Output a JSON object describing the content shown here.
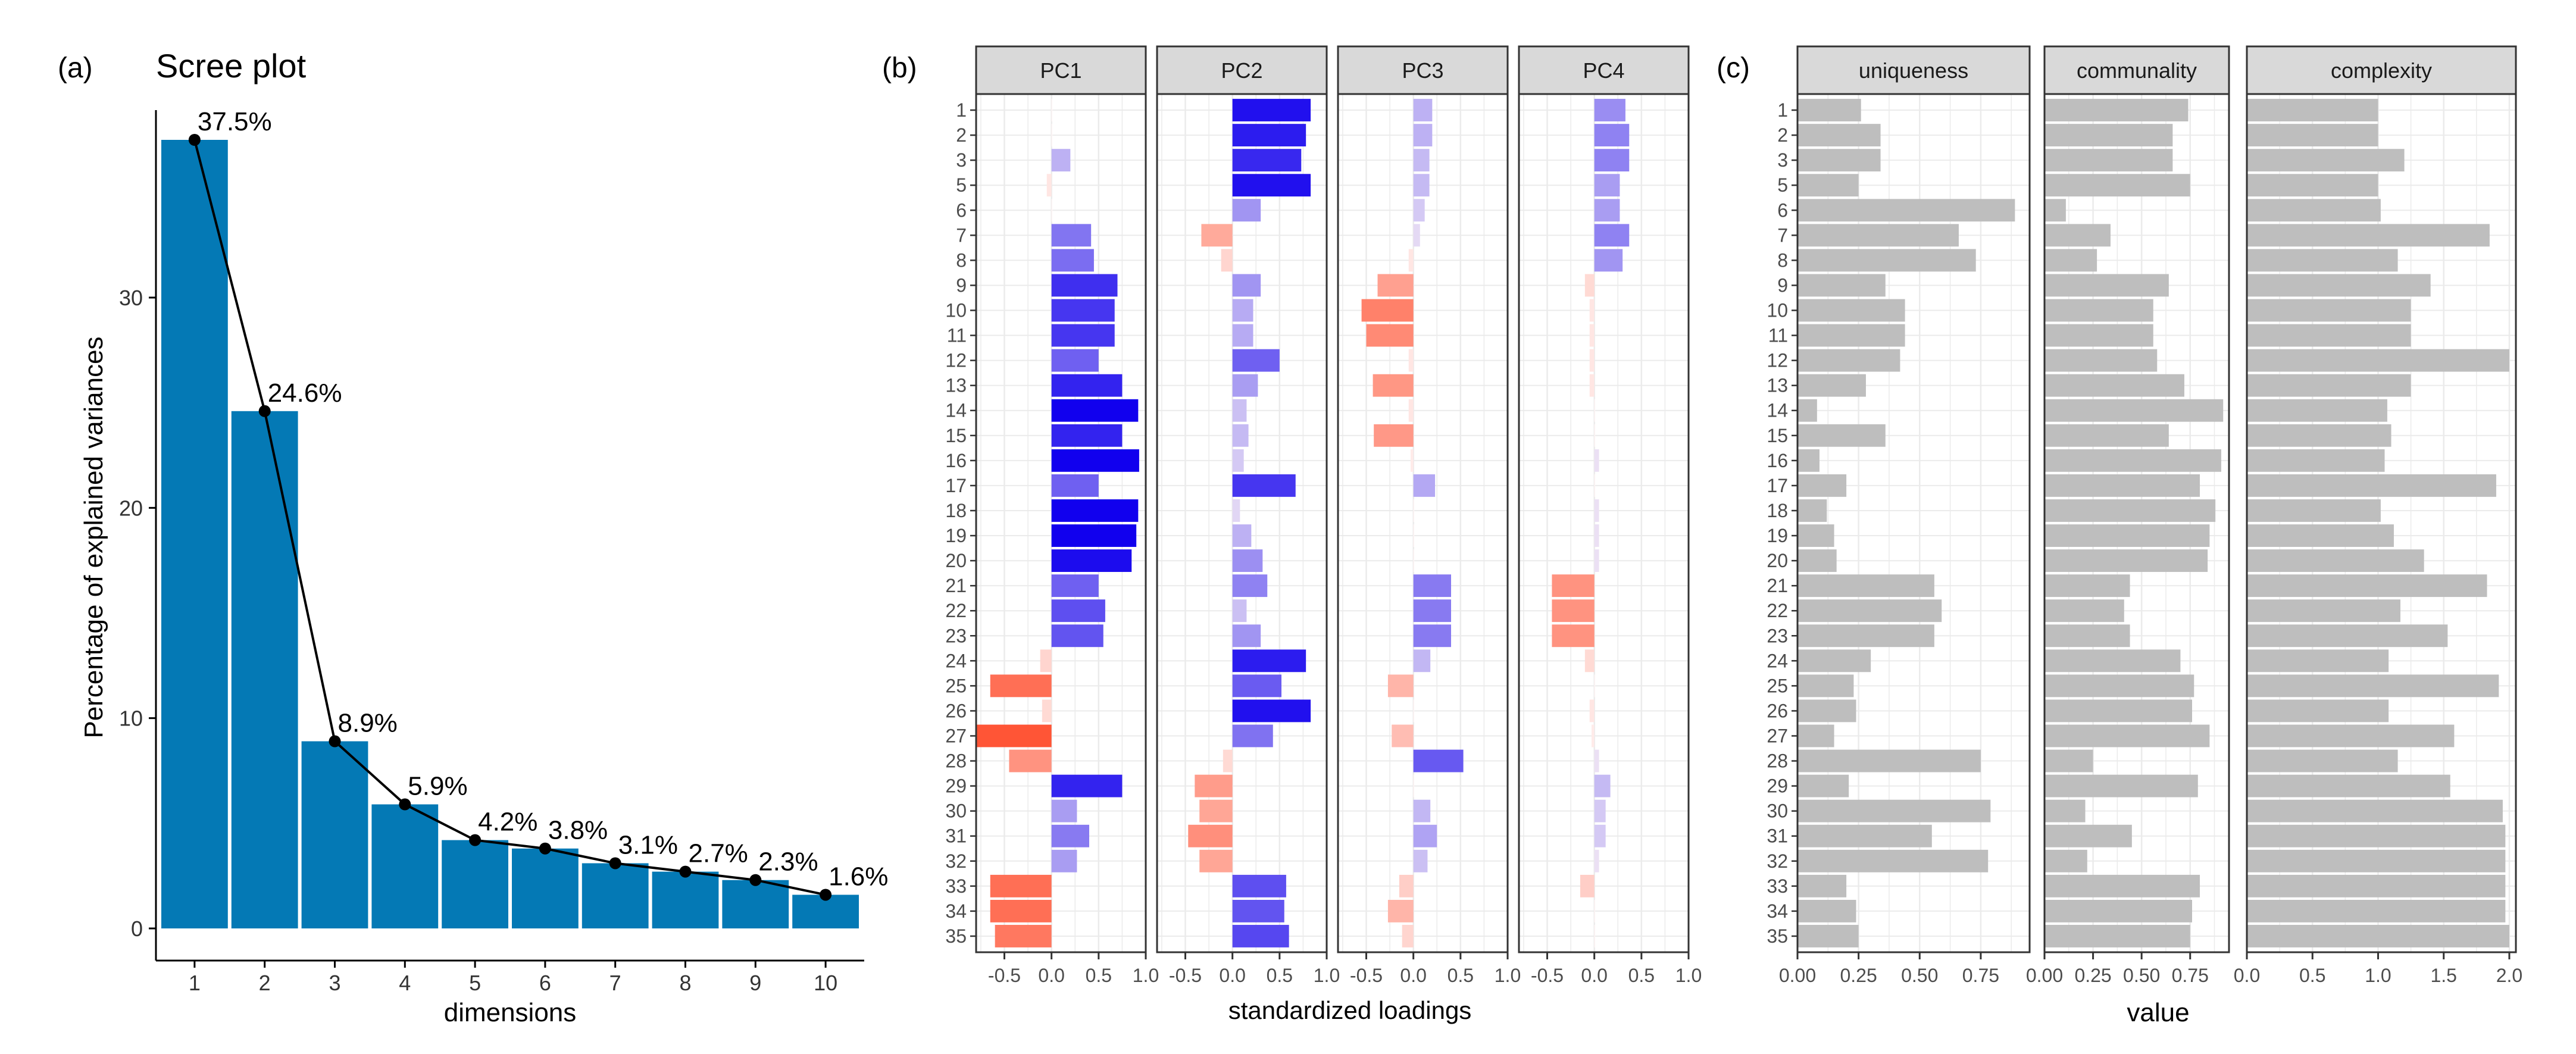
{
  "chart_data": [
    {
      "panel": "(a)",
      "type": "bar",
      "title": "Scree plot",
      "xlabel": "dimensions",
      "ylabel": "Percentage of explained variances",
      "categories": [
        "1",
        "2",
        "3",
        "4",
        "5",
        "6",
        "7",
        "8",
        "9",
        "10"
      ],
      "values": [
        37.5,
        24.6,
        8.9,
        5.9,
        4.2,
        3.8,
        3.1,
        2.7,
        2.3,
        1.6
      ],
      "labels": [
        "37.5%",
        "24.6%",
        "8.9%",
        "5.9%",
        "4.2%",
        "3.8%",
        "3.1%",
        "2.7%",
        "2.3%",
        "1.6%"
      ],
      "line_overlay": true,
      "ylim": [
        0,
        37.5
      ],
      "yticks": [
        0,
        10,
        20,
        30
      ],
      "bar_color": "#0479B5",
      "line_color": "#000000"
    },
    {
      "panel": "(b)",
      "type": "bar",
      "orientation": "horizontal",
      "xlabel": "standardized loadings",
      "facets": [
        "PC1",
        "PC2",
        "PC3",
        "PC4"
      ],
      "categories": [
        "1",
        "2",
        "3",
        "5",
        "6",
        "7",
        "8",
        "9",
        "10",
        "11",
        "12",
        "13",
        "14",
        "15",
        "16",
        "17",
        "18",
        "19",
        "20",
        "21",
        "22",
        "23",
        "24",
        "25",
        "26",
        "27",
        "28",
        "29",
        "30",
        "31",
        "32",
        "33",
        "34",
        "35"
      ],
      "xlim": [
        -0.8,
        1.0
      ],
      "xticks": [
        -0.5,
        0.0,
        0.5,
        1.0
      ],
      "xtick_labels": [
        "-0.5",
        "0.0",
        "0.5",
        "1.0"
      ],
      "series": [
        {
          "name": "PC1",
          "values": [
            0.0,
            0.0,
            0.2,
            -0.05,
            0.0,
            0.42,
            0.45,
            0.7,
            0.67,
            0.67,
            0.5,
            0.75,
            0.92,
            0.75,
            0.93,
            0.5,
            0.92,
            0.9,
            0.85,
            0.5,
            0.57,
            0.55,
            -0.12,
            -0.65,
            -0.1,
            -0.8,
            -0.45,
            0.75,
            0.27,
            0.4,
            0.27,
            -0.65,
            -0.65,
            -0.6
          ]
        },
        {
          "name": "PC2",
          "values": [
            0.83,
            0.78,
            0.73,
            0.83,
            0.3,
            -0.33,
            -0.12,
            0.3,
            0.22,
            0.22,
            0.5,
            0.27,
            0.15,
            0.17,
            0.12,
            0.67,
            0.08,
            0.2,
            0.32,
            0.37,
            0.15,
            0.3,
            0.78,
            0.52,
            0.83,
            0.43,
            -0.1,
            -0.4,
            -0.35,
            -0.47,
            -0.35,
            0.57,
            0.55,
            0.6
          ]
        },
        {
          "name": "PC3",
          "values": [
            0.2,
            0.2,
            0.17,
            0.17,
            0.12,
            0.07,
            -0.05,
            -0.38,
            -0.55,
            -0.5,
            -0.05,
            -0.43,
            -0.05,
            -0.42,
            -0.03,
            0.23,
            0.0,
            0.0,
            0.0,
            0.4,
            0.4,
            0.4,
            0.18,
            -0.27,
            0.0,
            -0.23,
            0.53,
            0.0,
            0.18,
            0.25,
            0.15,
            -0.15,
            -0.27,
            -0.12
          ]
        },
        {
          "name": "PC4",
          "values": [
            0.33,
            0.37,
            0.37,
            0.27,
            0.27,
            0.37,
            0.3,
            -0.1,
            -0.05,
            -0.05,
            -0.05,
            -0.05,
            0.0,
            0.0,
            0.05,
            0.0,
            0.05,
            0.05,
            0.05,
            -0.45,
            -0.45,
            -0.45,
            -0.1,
            0.0,
            -0.05,
            -0.03,
            0.05,
            0.17,
            0.12,
            0.12,
            0.05,
            -0.15,
            0.0,
            0.0
          ]
        }
      ],
      "colors": {
        "negative": "#FF4422",
        "zero": "#FFF5F5",
        "positive": "#1100EE"
      }
    },
    {
      "panel": "(c)",
      "type": "bar",
      "orientation": "horizontal",
      "xlabel": "value",
      "facets": [
        "uniqueness",
        "communality",
        "complexity"
      ],
      "categories": [
        "1",
        "2",
        "3",
        "5",
        "6",
        "7",
        "8",
        "9",
        "10",
        "11",
        "12",
        "13",
        "14",
        "15",
        "16",
        "17",
        "18",
        "19",
        "20",
        "21",
        "22",
        "23",
        "24",
        "25",
        "26",
        "27",
        "28",
        "29",
        "30",
        "31",
        "32",
        "33",
        "34",
        "35"
      ],
      "facet_xlim": [
        [
          0,
          0.95
        ],
        [
          0,
          0.95
        ],
        [
          0,
          2.05
        ]
      ],
      "facet_xticks": [
        [
          0.0,
          0.25,
          0.5,
          0.75
        ],
        [
          0.0,
          0.25,
          0.5,
          0.75
        ],
        [
          0.0,
          0.5,
          1.0,
          1.5,
          2.0
        ]
      ],
      "facet_xtick_labels": [
        [
          "0.00",
          "0.25",
          "0.50",
          "0.75"
        ],
        [
          "0.00",
          "0.25",
          "0.50",
          "0.75"
        ],
        [
          "0.0",
          "0.5",
          "1.0",
          "1.5",
          "2.0"
        ]
      ],
      "series": [
        {
          "name": "uniqueness",
          "values": [
            0.26,
            0.34,
            0.34,
            0.25,
            0.89,
            0.66,
            0.73,
            0.36,
            0.44,
            0.44,
            0.42,
            0.28,
            0.08,
            0.36,
            0.09,
            0.2,
            0.12,
            0.15,
            0.16,
            0.56,
            0.59,
            0.56,
            0.3,
            0.23,
            0.24,
            0.15,
            0.75,
            0.21,
            0.79,
            0.55,
            0.78,
            0.2,
            0.24,
            0.25
          ]
        },
        {
          "name": "communality",
          "values": [
            0.74,
            0.66,
            0.66,
            0.75,
            0.11,
            0.34,
            0.27,
            0.64,
            0.56,
            0.56,
            0.58,
            0.72,
            0.92,
            0.64,
            0.91,
            0.8,
            0.88,
            0.85,
            0.84,
            0.44,
            0.41,
            0.44,
            0.7,
            0.77,
            0.76,
            0.85,
            0.25,
            0.79,
            0.21,
            0.45,
            0.22,
            0.8,
            0.76,
            0.75
          ]
        },
        {
          "name": "complexity",
          "values": [
            1.0,
            1.0,
            1.2,
            1.0,
            1.02,
            1.85,
            1.15,
            1.4,
            1.25,
            1.25,
            2.0,
            1.25,
            1.07,
            1.1,
            1.05,
            1.9,
            1.02,
            1.12,
            1.35,
            1.83,
            1.17,
            1.53,
            1.08,
            1.92,
            1.08,
            1.58,
            1.15,
            1.55,
            1.95,
            1.97,
            1.97,
            1.97,
            1.97,
            2.0
          ]
        }
      ],
      "bar_color": "#BEBEBE"
    }
  ],
  "panel_labels": {
    "a": "(a)",
    "b": "(b)",
    "c": "(c)"
  }
}
